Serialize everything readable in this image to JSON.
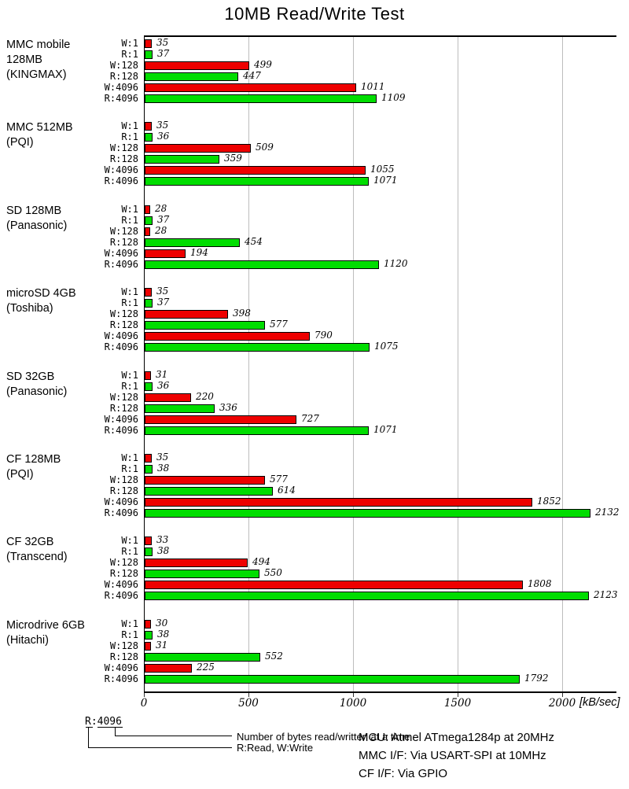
{
  "chart_data": {
    "type": "bar",
    "orientation": "horizontal",
    "title": "10MB Read/Write Test",
    "unit_label": "[kB/sec]",
    "xlim": [
      0,
      2256
    ],
    "x_ticks": [
      0,
      500,
      1000,
      1500,
      2000
    ],
    "grid": "vertical-only",
    "bar_keys": [
      "W:1",
      "R:1",
      "W:128",
      "R:128",
      "W:4096",
      "R:4096"
    ],
    "colors": {
      "write": "#ee0000",
      "read": "#00dd00",
      "gridline": "#bdbdbd"
    },
    "groups": [
      {
        "label": "MMC mobile 128MB",
        "vendor": "(KINGMAX)",
        "values": [
          35,
          37,
          499,
          447,
          1011,
          1109
        ]
      },
      {
        "label": "MMC 512MB",
        "vendor": "(PQI)",
        "values": [
          35,
          36,
          509,
          359,
          1055,
          1071
        ]
      },
      {
        "label": "SD 128MB",
        "vendor": "(Panasonic)",
        "values": [
          28,
          37,
          28,
          454,
          194,
          1120
        ]
      },
      {
        "label": "microSD 4GB",
        "vendor": "(Toshiba)",
        "values": [
          35,
          37,
          398,
          577,
          790,
          1075
        ]
      },
      {
        "label": "SD 32GB",
        "vendor": "(Panasonic)",
        "values": [
          31,
          36,
          220,
          336,
          727,
          1071
        ]
      },
      {
        "label": "CF 128MB",
        "vendor": "(PQI)",
        "values": [
          35,
          38,
          577,
          614,
          1852,
          2132
        ]
      },
      {
        "label": "CF 32GB",
        "vendor": "(Transcend)",
        "values": [
          33,
          38,
          494,
          550,
          1808,
          2123
        ]
      },
      {
        "label": "Microdrive 6GB",
        "vendor": "(Hitachi)",
        "values": [
          30,
          38,
          31,
          552,
          225,
          1792
        ]
      }
    ]
  },
  "legend": {
    "sample": "R:4096",
    "bytes_note": "Number of bytes read/written at a time",
    "rw_note": "R:Read, W:Write"
  },
  "footer": {
    "mcu": "MCU: Atmel ATmega1284p at 20MHz",
    "mmc_if": "MMC I/F: Via USART-SPI at 10MHz",
    "cf_if": "CF I/F: Via GPIO"
  }
}
